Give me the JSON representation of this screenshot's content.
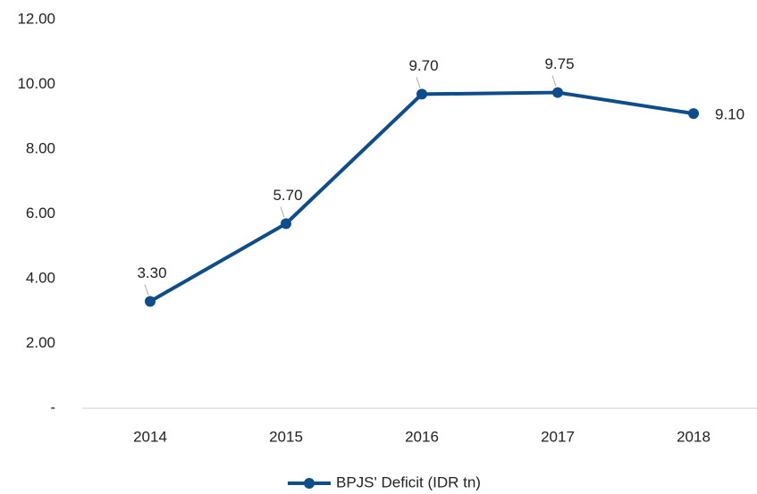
{
  "chart_data": {
    "type": "line",
    "categories": [
      "2014",
      "2015",
      "2016",
      "2017",
      "2018"
    ],
    "series": [
      {
        "name": "BPJS' Deficit (IDR tn)",
        "color": "#0e4d8c",
        "values": [
          3.3,
          5.7,
          9.7,
          9.75,
          9.1
        ],
        "value_labels": [
          "3.30",
          "5.70",
          "9.70",
          "9.75",
          "9.10"
        ]
      }
    ],
    "ylim": [
      0,
      12
    ],
    "yticks": [
      {
        "value": 0,
        "label": "-"
      },
      {
        "value": 2,
        "label": "2.00"
      },
      {
        "value": 4,
        "label": "4.00"
      },
      {
        "value": 6,
        "label": "6.00"
      },
      {
        "value": 8,
        "label": "8.00"
      },
      {
        "value": 10,
        "label": "10.00"
      },
      {
        "value": 12,
        "label": "12.00"
      }
    ],
    "grid": false,
    "legend": "bottom"
  }
}
